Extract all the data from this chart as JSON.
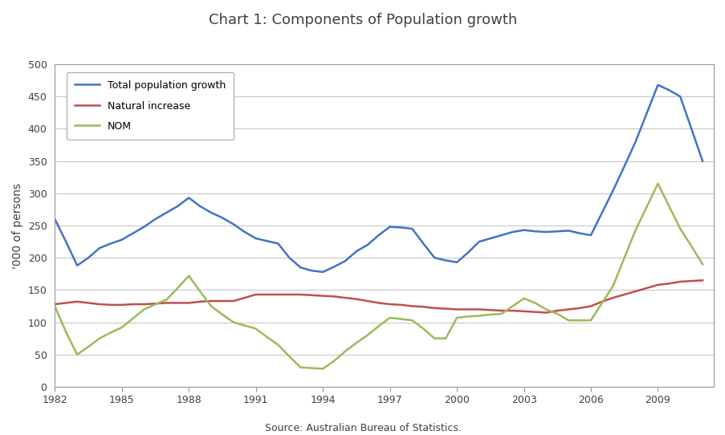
{
  "title": "Chart 1: Components of Population growth",
  "ylabel": "'000 of persons",
  "source": "Source: Australian Bureau of Statistics.",
  "xlim": [
    1982,
    2011.5
  ],
  "ylim": [
    0,
    500
  ],
  "yticks": [
    0,
    50,
    100,
    150,
    200,
    250,
    300,
    350,
    400,
    450,
    500
  ],
  "xticks": [
    1982,
    1985,
    1988,
    1991,
    1994,
    1997,
    2000,
    2003,
    2006,
    2009
  ],
  "years": [
    1982.0,
    1982.5,
    1983.0,
    1983.5,
    1984.0,
    1984.5,
    1985.0,
    1985.5,
    1986.0,
    1986.5,
    1987.0,
    1987.5,
    1988.0,
    1988.5,
    1989.0,
    1989.5,
    1990.0,
    1990.5,
    1991.0,
    1991.5,
    1992.0,
    1992.5,
    1993.0,
    1993.5,
    1994.0,
    1994.5,
    1995.0,
    1995.5,
    1996.0,
    1996.5,
    1997.0,
    1997.5,
    1998.0,
    1998.5,
    1999.0,
    1999.5,
    2000.0,
    2000.5,
    2001.0,
    2001.5,
    2002.0,
    2002.5,
    2003.0,
    2003.5,
    2004.0,
    2004.5,
    2005.0,
    2005.5,
    2006.0,
    2006.5,
    2007.0,
    2007.5,
    2008.0,
    2008.5,
    2009.0,
    2009.5,
    2010.0,
    2010.5,
    2011.0
  ],
  "total_pop": [
    260,
    225,
    188,
    200,
    215,
    222,
    228,
    238,
    248,
    260,
    270,
    280,
    293,
    280,
    270,
    262,
    252,
    240,
    230,
    226,
    222,
    200,
    185,
    180,
    178,
    186,
    195,
    210,
    220,
    235,
    248,
    247,
    245,
    222,
    200,
    196,
    193,
    208,
    225,
    230,
    235,
    240,
    243,
    241,
    240,
    241,
    242,
    238,
    235,
    270,
    305,
    342,
    380,
    424,
    468,
    460,
    450,
    400,
    350
  ],
  "natural_increase": [
    128,
    130,
    132,
    130,
    128,
    127,
    127,
    128,
    128,
    129,
    130,
    130,
    130,
    132,
    133,
    133,
    133,
    138,
    143,
    143,
    143,
    143,
    143,
    142,
    141,
    140,
    138,
    136,
    133,
    130,
    128,
    127,
    125,
    124,
    122,
    121,
    120,
    120,
    120,
    119,
    118,
    118,
    117,
    116,
    115,
    118,
    120,
    122,
    125,
    132,
    138,
    143,
    148,
    153,
    158,
    160,
    163,
    164,
    165
  ],
  "nom": [
    125,
    85,
    50,
    62,
    75,
    84,
    92,
    106,
    120,
    128,
    135,
    153,
    172,
    148,
    125,
    112,
    100,
    95,
    90,
    77,
    65,
    47,
    30,
    29,
    28,
    40,
    55,
    68,
    80,
    94,
    107,
    105,
    103,
    90,
    75,
    75,
    107,
    109,
    110,
    112,
    113,
    125,
    137,
    130,
    120,
    113,
    103,
    103,
    103,
    130,
    157,
    200,
    243,
    279,
    315,
    280,
    245,
    218,
    190
  ],
  "color_total": "#4472C4",
  "color_natural": "#C0504D",
  "color_nom": "#9BBB59",
  "linewidth": 1.8,
  "legend_labels": [
    "Total population growth",
    "Natural increase",
    "NOM"
  ],
  "background_color": "#FFFFFF",
  "grid_color": "#C8C8C8",
  "title_color": "#404040",
  "title_fontsize": 13
}
